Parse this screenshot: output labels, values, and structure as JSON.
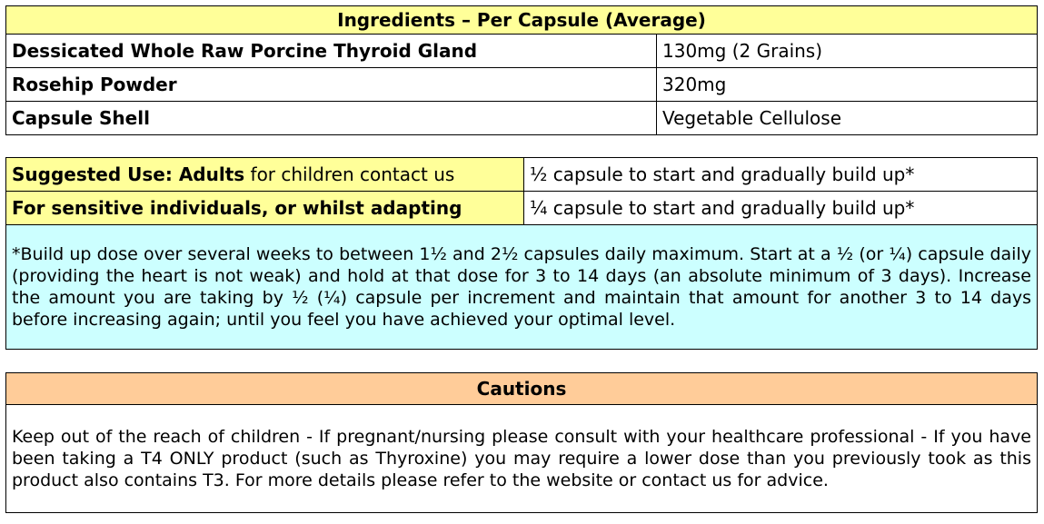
{
  "ingredients": {
    "title": "Ingredients – Per Capsule (Average)",
    "rows": [
      {
        "name": "Dessicated Whole Raw Porcine Thyroid Gland",
        "amount": "130mg (2 Grains)"
      },
      {
        "name": "Rosehip Powder",
        "amount": "320mg"
      },
      {
        "name": "Capsule Shell",
        "amount": "Vegetable Cellulose"
      }
    ]
  },
  "usage": {
    "adults_label_bold": "Suggested Use: Adults",
    "adults_label_rest": " for children contact us",
    "adults_dose": "½ capsule to start and gradually build up*",
    "sensitive_label": "For sensitive individuals, or whilst adapting",
    "sensitive_dose": "¼ capsule to start and gradually build up*",
    "note": "*Build up dose over several weeks to between 1½ and 2½ capsules daily maximum. Start at a ½ (or ¼) capsule daily (providing the heart is not weak) and hold at that dose for 3 to 14 days (an absolute minimum of 3 days). Increase the amount you are taking by ½ (¼) capsule per increment and maintain that amount for another 3 to 14 days before increasing again; until you feel you have achieved your optimal level."
  },
  "cautions": {
    "title": "Cautions",
    "text": "Keep out of the reach of children - If pregnant/nursing please consult with your healthcare professional - If you have been taking a T4 ONLY product (such as Thyroxine) you may require a lower dose than you previously took as this product also contains T3. For more details please refer to the website or contact us for advice."
  },
  "colors": {
    "header_yellow": "#ffff99",
    "note_cyan": "#ccffff",
    "cautions_orange": "#ffcc99"
  }
}
